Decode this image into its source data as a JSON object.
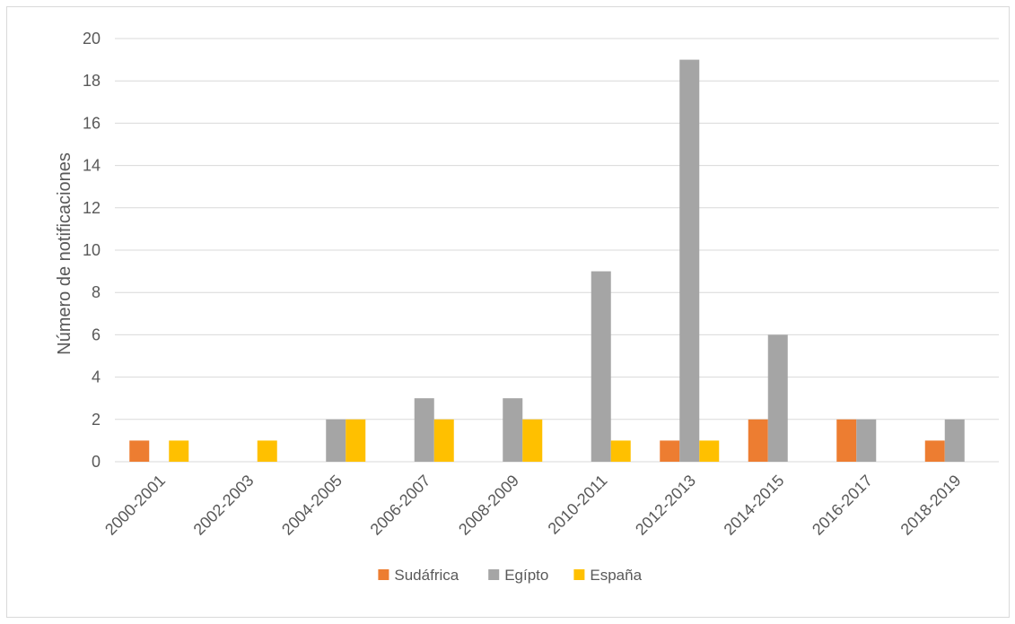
{
  "chart_data": {
    "type": "bar",
    "title": "",
    "xlabel": "",
    "ylabel": "Número de notificaciones",
    "ylim": [
      0,
      20
    ],
    "yticks": [
      0,
      2,
      4,
      6,
      8,
      10,
      12,
      14,
      16,
      18,
      20
    ],
    "grid": true,
    "legend_position": "bottom",
    "categories": [
      "2000-2001",
      "2002-2003",
      "2004-2005",
      "2006-2007",
      "2008-2009",
      "2010-2011",
      "2012-2013",
      "2014-2015",
      "2016-2017",
      "2018-2019"
    ],
    "series": [
      {
        "name": "Sudáfrica",
        "color": "#ED7D31",
        "values": [
          1,
          0,
          0,
          0,
          0,
          0,
          1,
          2,
          2,
          1
        ]
      },
      {
        "name": "Egípto",
        "color": "#A5A5A5",
        "values": [
          0,
          0,
          2,
          3,
          3,
          9,
          19,
          6,
          2,
          2
        ]
      },
      {
        "name": "España",
        "color": "#FFC000",
        "values": [
          1,
          1,
          2,
          2,
          2,
          1,
          1,
          0,
          0,
          0
        ]
      }
    ]
  }
}
